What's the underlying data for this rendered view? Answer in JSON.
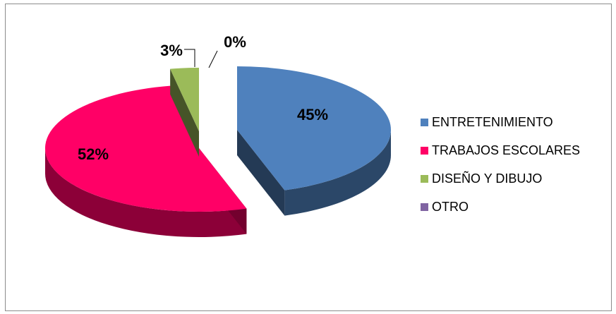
{
  "chart_data": {
    "type": "pie",
    "style": "3d-exploded",
    "categories": [
      "ENTRETENIMIENTO",
      "TRABAJOS ESCOLARES",
      "DISEÑO Y DIBUJO",
      "OTRO"
    ],
    "values": [
      45,
      52,
      3,
      0
    ],
    "data_labels": [
      "45%",
      "52%",
      "3%",
      "0%"
    ],
    "colors": [
      "#4f81bd",
      "#ff0066",
      "#9bbb59",
      "#8064a2"
    ],
    "legend_position": "right",
    "title": ""
  }
}
